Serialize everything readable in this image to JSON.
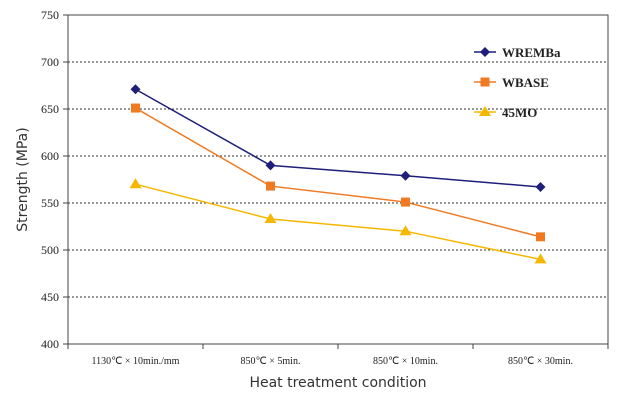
{
  "chart_data": {
    "type": "line",
    "title": "",
    "xlabel": "Heat treatment condition",
    "ylabel": "Strength (MPa)",
    "categories": [
      "1130℃ × 10min./mm",
      "850℃ × 5min.",
      "850℃ × 10min.",
      "850℃ × 30min."
    ],
    "ylim": [
      400,
      750
    ],
    "yticks": [
      400,
      450,
      500,
      550,
      600,
      650,
      700,
      750
    ],
    "grid": "horizontal dotted",
    "legend_position": "top-right",
    "series": [
      {
        "name": "WREMBa",
        "values": [
          671,
          590,
          579,
          567
        ],
        "color": "#1f1f7a",
        "marker": "diamond"
      },
      {
        "name": "WBASE",
        "values": [
          651,
          568,
          551,
          514
        ],
        "color": "#f07a22",
        "marker": "square"
      },
      {
        "name": "45MO",
        "values": [
          570,
          533,
          520,
          490
        ],
        "color": "#f5b700",
        "marker": "triangle"
      }
    ]
  }
}
